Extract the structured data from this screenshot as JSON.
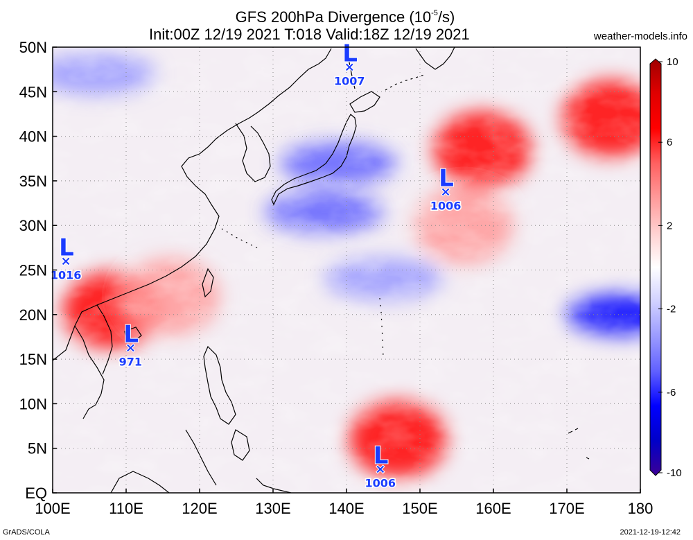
{
  "title": {
    "line1_prefix": "GFS 200hPa Divergence (10",
    "line1_exp": "-5",
    "line1_suffix": "/s)",
    "line2": "Init:00Z 12/19 2021 T:018 Valid:18Z 12/19 2021"
  },
  "site": "weather-models.info",
  "footer": {
    "source": "GrADS/COLA",
    "timestamp": "2021-12-19-12:42"
  },
  "map": {
    "lon_range": [
      100,
      180
    ],
    "lat_range": [
      0,
      50
    ],
    "lon_ticks": [
      {
        "value": 100,
        "label": "100E"
      },
      {
        "value": 110,
        "label": "110E"
      },
      {
        "value": 120,
        "label": "120E"
      },
      {
        "value": 130,
        "label": "130E"
      },
      {
        "value": 140,
        "label": "140E"
      },
      {
        "value": 150,
        "label": "150E"
      },
      {
        "value": 160,
        "label": "160E"
      },
      {
        "value": 170,
        "label": "170E"
      },
      {
        "value": 180,
        "label": "180"
      }
    ],
    "lat_ticks": [
      {
        "value": 0,
        "label": "EQ"
      },
      {
        "value": 5,
        "label": "5N"
      },
      {
        "value": 10,
        "label": "10N"
      },
      {
        "value": 15,
        "label": "15N"
      },
      {
        "value": 20,
        "label": "20N"
      },
      {
        "value": 25,
        "label": "25N"
      },
      {
        "value": 30,
        "label": "30N"
      },
      {
        "value": 35,
        "label": "35N"
      },
      {
        "value": 40,
        "label": "40N"
      },
      {
        "value": 45,
        "label": "45N"
      },
      {
        "value": 50,
        "label": "50N"
      }
    ],
    "grid": true,
    "lows": [
      {
        "symbol": "L",
        "pressure": "1007",
        "lon": 140.4,
        "lat": 47.8
      },
      {
        "symbol": "L",
        "pressure": "1006",
        "lon": 153.5,
        "lat": 33.8
      },
      {
        "symbol": "L",
        "pressure": "1016",
        "lon": 101.8,
        "lat": 26.0
      },
      {
        "symbol": "L",
        "pressure": "971",
        "lon": 110.6,
        "lat": 16.3
      },
      {
        "symbol": "L",
        "pressure": "1006",
        "lon": 144.6,
        "lat": 2.7
      }
    ]
  },
  "colorbar": {
    "range": [
      -10,
      10
    ],
    "labels": [
      "10",
      "6",
      "2",
      "-2",
      "-6",
      "-10"
    ],
    "label_values": [
      10,
      6,
      2,
      -2,
      -6,
      -10
    ],
    "colors_top_to_bottom": [
      "#a00000",
      "#e00000",
      "#ff0000",
      "#ff6060",
      "#ff9a9a",
      "#ffd0d0",
      "#ffffff",
      "#d0d0ff",
      "#9a9aff",
      "#6060ff",
      "#0000ff",
      "#0000c8",
      "#3c0096"
    ]
  },
  "chart_data": {
    "type": "heatmap",
    "title": "GFS 200hPa Divergence (10-5/s)",
    "subtitle": "Init:00Z 12/19 2021 T:018 Valid:18Z 12/19 2021",
    "xlabel": "",
    "ylabel": "",
    "xlim": [
      100,
      180
    ],
    "ylim": [
      0,
      50
    ],
    "value_range": [
      -10,
      10
    ],
    "features": [
      {
        "sign": "positive",
        "lon": 176,
        "lat": 42,
        "value": 6
      },
      {
        "sign": "positive",
        "lon": 158.5,
        "lat": 38.5,
        "value": 7
      },
      {
        "sign": "positive",
        "lon": 156,
        "lat": 30,
        "value": 4
      },
      {
        "sign": "positive",
        "lon": 147,
        "lat": 6,
        "value": 6
      },
      {
        "sign": "positive",
        "lon": 108,
        "lat": 20.5,
        "value": 6
      },
      {
        "sign": "positive",
        "lon": 116,
        "lat": 22,
        "value": 4
      },
      {
        "sign": "negative",
        "lon": 137,
        "lat": 31.5,
        "value": -5
      },
      {
        "sign": "negative",
        "lon": 139,
        "lat": 37,
        "value": -5
      },
      {
        "sign": "negative",
        "lon": 178,
        "lat": 20,
        "value": -6
      },
      {
        "sign": "negative",
        "lon": 145,
        "lat": 24,
        "value": -3
      },
      {
        "sign": "negative",
        "lon": 106,
        "lat": 47,
        "value": -4
      }
    ]
  }
}
